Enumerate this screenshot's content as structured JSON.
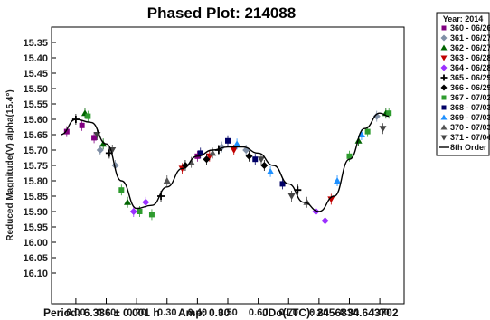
{
  "chart_data": {
    "type": "scatter",
    "title": "Phased Plot: 214088",
    "xlabel": "",
    "ylabel": "Reduced Magnitude(V) alpha(15.4°)",
    "xlim": [
      -0.08,
      1.08
    ],
    "ylim": [
      15.3,
      16.2
    ],
    "y_inverted": true,
    "x_ticks": [
      "0.00",
      "0.10",
      "0.20",
      "0.30",
      "0.40",
      "0.50",
      "0.60",
      "0.70",
      "0.80",
      "0.90",
      "1.00"
    ],
    "y_ticks": [
      "15.35",
      "15.40",
      "15.45",
      "15.50",
      "15.55",
      "15.60",
      "15.65",
      "15.70",
      "15.75",
      "15.80",
      "15.85",
      "15.90",
      "15.95",
      "16.00",
      "16.05",
      "16.10"
    ],
    "legend_title": "Year: 2014",
    "legend_position": "right",
    "series": [
      {
        "name": "360 - 06/26",
        "color": "#800080",
        "marker": "square",
        "x": [
          -0.03,
          0.02,
          0.06,
          0.4
        ],
        "y": [
          15.64,
          15.62,
          15.66,
          15.72
        ]
      },
      {
        "name": "361 - 06/27",
        "color": "#7f8fa6",
        "marker": "diamond",
        "x": [
          0.08,
          0.13,
          0.48,
          0.56,
          0.99
        ],
        "y": [
          15.7,
          15.75,
          15.69,
          15.7,
          15.59
        ]
      },
      {
        "name": "362 - 06/27",
        "color": "#006400",
        "marker": "triangle",
        "x": [
          0.03,
          0.09,
          0.17,
          0.93,
          1.02
        ],
        "y": [
          15.58,
          15.68,
          15.87,
          15.67,
          15.58
        ]
      },
      {
        "name": "363 - 06/28",
        "color": "#c00000",
        "marker": "triangle-down",
        "x": [
          0.35,
          0.44,
          0.52,
          0.84
        ],
        "y": [
          15.76,
          15.72,
          15.7,
          15.86
        ]
      },
      {
        "name": "364 - 06/28",
        "color": "#9b30ff",
        "marker": "diamond",
        "x": [
          0.19,
          0.23,
          0.79,
          0.82
        ],
        "y": [
          15.9,
          15.87,
          15.9,
          15.93
        ]
      },
      {
        "name": "365 - 06/29",
        "color": "#000000",
        "marker": "plus",
        "x": [
          0.0,
          0.11,
          0.28,
          0.47,
          0.73
        ],
        "y": [
          15.6,
          15.71,
          15.85,
          15.7,
          15.83
        ]
      },
      {
        "name": "366 - 06/29",
        "color": "#000000",
        "marker": "diamond",
        "x": [
          0.36,
          0.43,
          0.57,
          0.62
        ],
        "y": [
          15.75,
          15.73,
          15.72,
          15.75
        ]
      },
      {
        "name": "367 - 07/02",
        "color": "#2e9b2e",
        "marker": "square",
        "x": [
          0.04,
          0.15,
          0.21,
          0.25,
          0.9,
          0.96,
          1.03
        ],
        "y": [
          15.59,
          15.83,
          15.9,
          15.91,
          15.72,
          15.64,
          15.58
        ]
      },
      {
        "name": "368 - 07/03",
        "color": "#000066",
        "marker": "square",
        "x": [
          0.41,
          0.5,
          0.59,
          0.68
        ],
        "y": [
          15.71,
          15.67,
          15.73,
          15.81
        ]
      },
      {
        "name": "369 - 07/03",
        "color": "#1e90ff",
        "marker": "triangle",
        "x": [
          0.53,
          0.64,
          0.86,
          0.94
        ],
        "y": [
          15.68,
          15.77,
          15.8,
          15.65
        ]
      },
      {
        "name": "370 - 07/03",
        "color": "#555555",
        "marker": "triangle",
        "x": [
          0.3,
          0.38,
          0.45,
          0.76
        ],
        "y": [
          15.8,
          15.74,
          15.71,
          15.87
        ]
      },
      {
        "name": "371 - 07/04",
        "color": "#444444",
        "marker": "triangle-down",
        "x": [
          0.07,
          0.12,
          0.61,
          0.71,
          1.01
        ],
        "y": [
          15.65,
          15.7,
          15.73,
          15.85,
          15.63
        ]
      }
    ],
    "fit": {
      "name": "8th Order",
      "color": "#000000",
      "x": [
        -0.05,
        0.0,
        0.05,
        0.1,
        0.15,
        0.2,
        0.25,
        0.3,
        0.35,
        0.4,
        0.45,
        0.5,
        0.55,
        0.6,
        0.65,
        0.7,
        0.75,
        0.8,
        0.85,
        0.9,
        0.95,
        1.0,
        1.03
      ],
      "y": [
        15.65,
        15.6,
        15.61,
        15.68,
        15.8,
        15.89,
        15.88,
        15.82,
        15.76,
        15.72,
        15.7,
        15.69,
        15.69,
        15.71,
        15.75,
        15.81,
        15.87,
        15.9,
        15.85,
        15.73,
        15.63,
        15.58,
        15.59
      ]
    }
  },
  "footer": {
    "period": "Period: 6.336 ± 0.001 h",
    "amp": "Amp: 0.30",
    "jdo": "JDo(LTC): 2456834.643702"
  }
}
